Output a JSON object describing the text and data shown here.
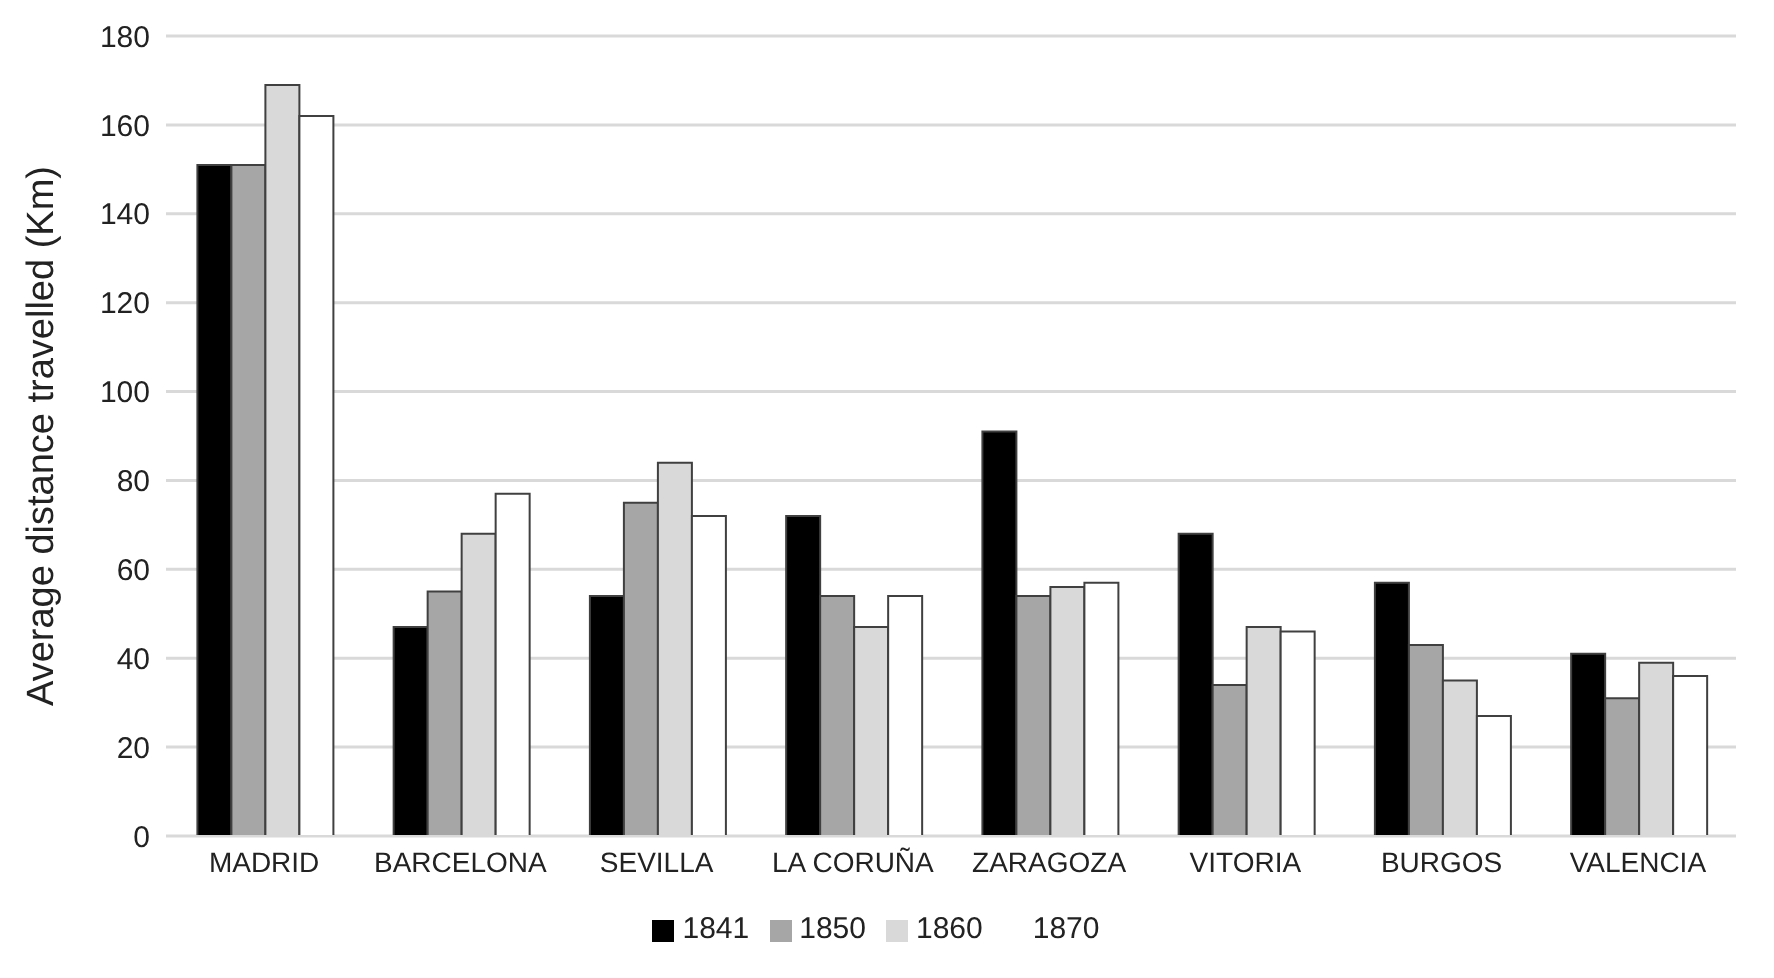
{
  "chart_data": {
    "type": "bar",
    "ylabel": "Average distance travelled (Km)",
    "categories": [
      "MADRID",
      "BARCELONA",
      "SEVILLA",
      "LA CORUÑA",
      "ZARAGOZA",
      "VITORIA",
      "BURGOS",
      "VALENCIA"
    ],
    "series": [
      {
        "name": "1841",
        "color": "#000000",
        "values": [
          151,
          47,
          54,
          72,
          91,
          68,
          57,
          41
        ]
      },
      {
        "name": "1850",
        "color": "#a6a6a6",
        "values": [
          151,
          55,
          75,
          54,
          54,
          34,
          43,
          31
        ]
      },
      {
        "name": "1860",
        "color": "#d9d9d9",
        "values": [
          169,
          68,
          84,
          47,
          56,
          47,
          35,
          39
        ]
      },
      {
        "name": "1870",
        "color": "#ffffff",
        "values": [
          162,
          77,
          72,
          54,
          57,
          46,
          27,
          36
        ]
      }
    ],
    "ylim": [
      0,
      180
    ],
    "yticks": [
      0,
      20,
      40,
      60,
      80,
      100,
      120,
      140,
      160,
      180
    ],
    "grid": "y",
    "legend": "bottom"
  }
}
